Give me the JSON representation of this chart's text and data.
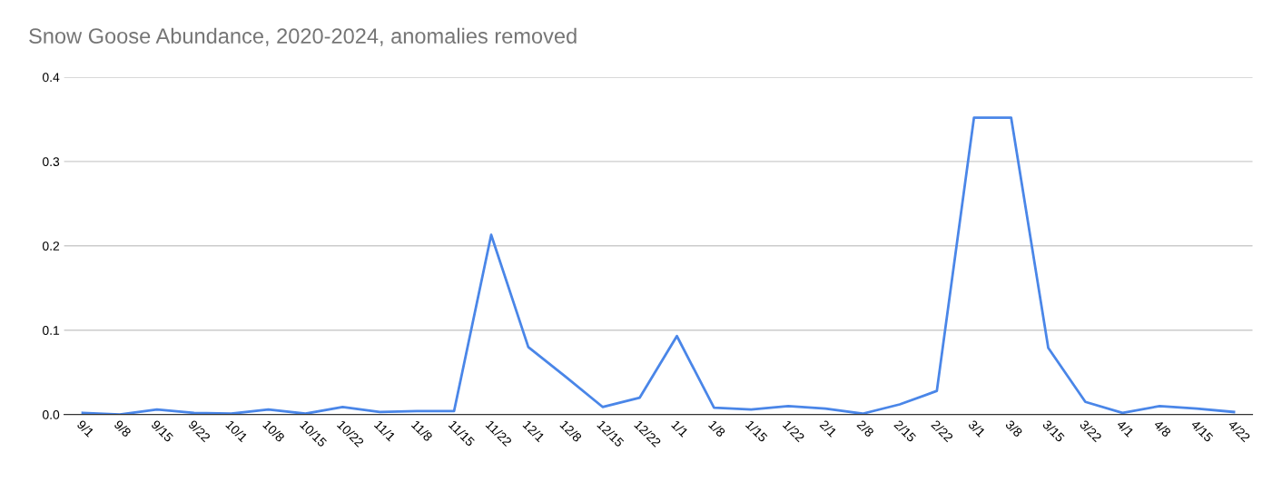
{
  "chart_data": {
    "type": "line",
    "title": "Snow Goose Abundance, 2020-2024, anomalies removed",
    "categories": [
      "9/1",
      "9/8",
      "9/15",
      "9/22",
      "10/1",
      "10/8",
      "10/15",
      "10/22",
      "11/1",
      "11/8",
      "11/15",
      "11/22",
      "12/1",
      "12/8",
      "12/15",
      "12/22",
      "1/1",
      "1/8",
      "1/15",
      "1/22",
      "2/1",
      "2/8",
      "2/15",
      "2/22",
      "3/1",
      "3/8",
      "3/15",
      "3/22",
      "4/1",
      "4/8",
      "4/15",
      "4/22"
    ],
    "series": [
      {
        "color": "#4a86e8",
        "values": [
          0.002,
          0.0,
          0.006,
          0.002,
          0.001,
          0.006,
          0.001,
          0.009,
          0.003,
          0.004,
          0.004,
          0.213,
          0.08,
          0.045,
          0.009,
          0.02,
          0.093,
          0.008,
          0.006,
          0.01,
          0.007,
          0.001,
          0.012,
          0.028,
          0.352,
          0.352,
          0.079,
          0.015,
          0.002,
          0.01,
          0.007,
          0.003
        ]
      }
    ],
    "ylim": [
      0,
      0.4
    ],
    "yticks": [
      {
        "value": 0,
        "label": "0.0"
      },
      0.1,
      0.2,
      0.3,
      0.4
    ],
    "grid": "y",
    "marker": "none",
    "line_style": "solid"
  }
}
